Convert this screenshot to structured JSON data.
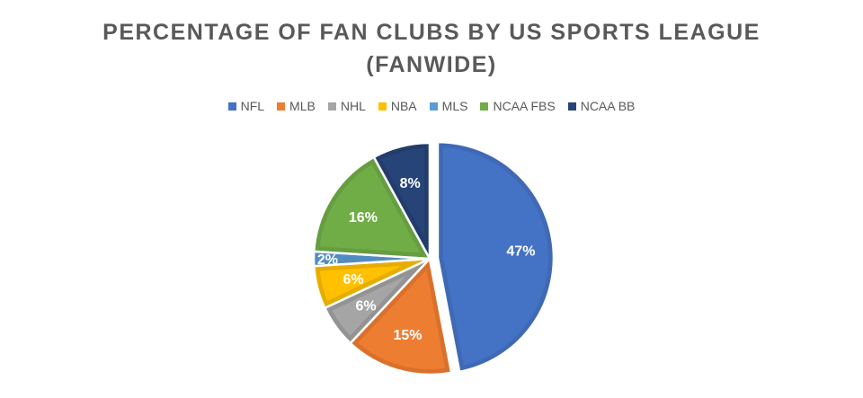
{
  "chart_data": {
    "type": "pie",
    "title_lines": [
      "PERCENTAGE OF FAN CLUBS BY US SPORTS LEAGUE",
      "(FANWIDE)"
    ],
    "legend_position": "top",
    "categories": [
      "NFL",
      "MLB",
      "NHL",
      "NBA",
      "MLS",
      "NCAA FBS",
      "NCAA BB"
    ],
    "values": [
      47,
      15,
      6,
      6,
      2,
      16,
      8
    ],
    "labels": [
      "47%",
      "15%",
      "6%",
      "6%",
      "2%",
      "16%",
      "8%"
    ],
    "colors": [
      "#4472C4",
      "#ED7D31",
      "#A5A5A5",
      "#FFC000",
      "#5B9BD5",
      "#70AD47",
      "#264478"
    ],
    "border_colors": [
      "#3F69B5",
      "#D9712C",
      "#939393",
      "#E6AD00",
      "#518CC1",
      "#659D40",
      "#223D6B"
    ],
    "exploded": [
      "NFL"
    ]
  }
}
